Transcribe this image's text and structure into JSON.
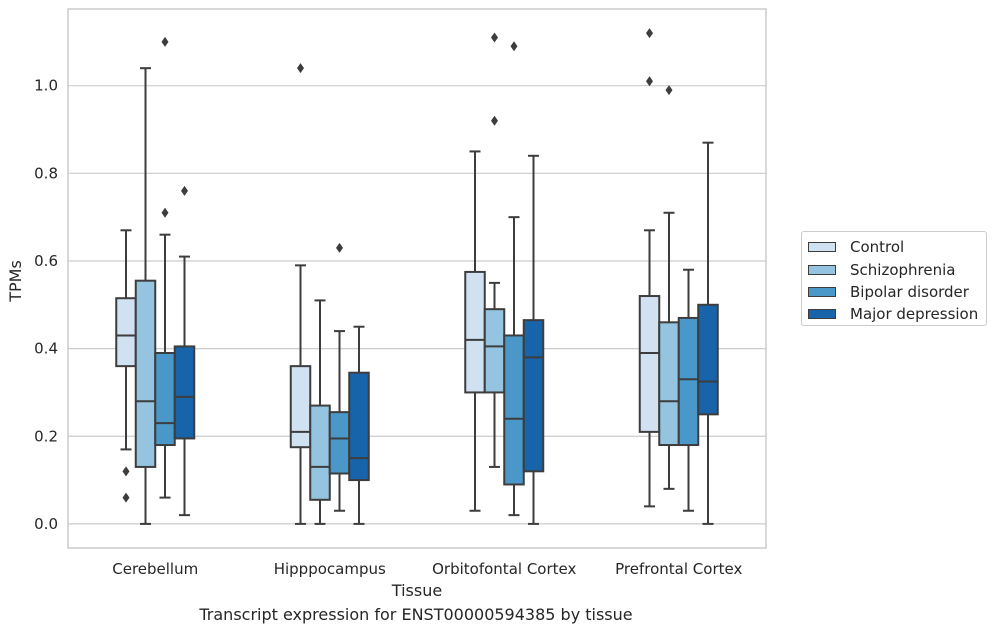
{
  "caption": "Transcript expression for ENST00000594385 by tissue",
  "chart_data": {
    "type": "box",
    "xlabel": "Tissue",
    "ylabel": "TPMs",
    "ylim": [
      -0.055,
      1.175
    ],
    "yticks": [
      "0.0",
      "0.2",
      "0.4",
      "0.6",
      "0.8",
      "1.0"
    ],
    "grid": "horizontal",
    "legend_position": "right",
    "categories": [
      "Cerebellum",
      "Hipppocampus",
      "Orbitofontal Cortex",
      "Prefrontal Cortex"
    ],
    "series": [
      {
        "name": "Control",
        "color": "#d0e1f2",
        "boxes": [
          {
            "whislo": 0.17,
            "q1": 0.36,
            "med": 0.43,
            "q3": 0.515,
            "whishi": 0.67,
            "fliers": [
              0.12,
              0.06
            ]
          },
          {
            "whislo": 0.0,
            "q1": 0.175,
            "med": 0.21,
            "q3": 0.36,
            "whishi": 0.59,
            "fliers": [
              1.04
            ]
          },
          {
            "whislo": 0.03,
            "q1": 0.3,
            "med": 0.42,
            "q3": 0.575,
            "whishi": 0.85,
            "fliers": []
          },
          {
            "whislo": 0.04,
            "q1": 0.21,
            "med": 0.39,
            "q3": 0.52,
            "whishi": 0.67,
            "fliers": [
              1.12,
              1.01
            ]
          }
        ]
      },
      {
        "name": "Schizophrenia",
        "color": "#94c4df",
        "boxes": [
          {
            "whislo": 0.0,
            "q1": 0.13,
            "med": 0.28,
            "q3": 0.555,
            "whishi": 1.04,
            "fliers": []
          },
          {
            "whislo": 0.0,
            "q1": 0.055,
            "med": 0.13,
            "q3": 0.27,
            "whishi": 0.51,
            "fliers": []
          },
          {
            "whislo": 0.13,
            "q1": 0.3,
            "med": 0.405,
            "q3": 0.49,
            "whishi": 0.55,
            "fliers": [
              1.11,
              0.92
            ]
          },
          {
            "whislo": 0.08,
            "q1": 0.18,
            "med": 0.28,
            "q3": 0.46,
            "whishi": 0.71,
            "fliers": [
              0.99
            ]
          }
        ]
      },
      {
        "name": "Bipolar disorder",
        "color": "#4a98c9",
        "boxes": [
          {
            "whislo": 0.06,
            "q1": 0.18,
            "med": 0.23,
            "q3": 0.39,
            "whishi": 0.66,
            "fliers": [
              1.1,
              0.71
            ]
          },
          {
            "whislo": 0.03,
            "q1": 0.115,
            "med": 0.195,
            "q3": 0.255,
            "whishi": 0.44,
            "fliers": [
              0.63
            ]
          },
          {
            "whislo": 0.02,
            "q1": 0.09,
            "med": 0.24,
            "q3": 0.43,
            "whishi": 0.7,
            "fliers": [
              1.09
            ]
          },
          {
            "whislo": 0.03,
            "q1": 0.18,
            "med": 0.33,
            "q3": 0.47,
            "whishi": 0.58,
            "fliers": []
          }
        ]
      },
      {
        "name": "Major depression",
        "color": "#1764ab",
        "boxes": [
          {
            "whislo": 0.02,
            "q1": 0.195,
            "med": 0.29,
            "q3": 0.405,
            "whishi": 0.61,
            "fliers": [
              0.76
            ]
          },
          {
            "whislo": 0.0,
            "q1": 0.1,
            "med": 0.15,
            "q3": 0.345,
            "whishi": 0.45,
            "fliers": []
          },
          {
            "whislo": 0.0,
            "q1": 0.12,
            "med": 0.38,
            "q3": 0.465,
            "whishi": 0.84,
            "fliers": []
          },
          {
            "whislo": 0.0,
            "q1": 0.25,
            "med": 0.325,
            "q3": 0.5,
            "whishi": 0.87,
            "fliers": []
          }
        ]
      }
    ]
  }
}
